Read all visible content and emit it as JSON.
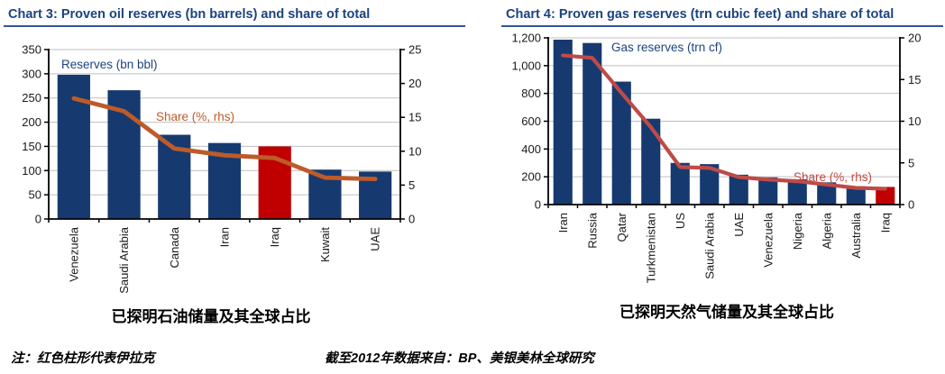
{
  "page": {
    "background": "#FFFFFF"
  },
  "footer": {
    "note": "注：红色柱形代表伊拉克",
    "source": "截至2012年数据来自：BP、美银美林全球研究"
  },
  "chart_data": [
    {
      "type": "bar",
      "title": "Chart 3: Proven oil reserves (bn barrels) and share of total",
      "caption": "已探明石油储量及其全球占比",
      "categories": [
        "Venezuela",
        "Saudi Arabia",
        "Canada",
        "Iran",
        "Iraq",
        "Kuwait",
        "UAE"
      ],
      "series": [
        {
          "name": "Reserves (bn bbl)",
          "type": "bar",
          "axis": "left",
          "values": [
            298,
            266,
            174,
            157,
            150,
            102,
            98
          ]
        },
        {
          "name": "Share (%, rhs)",
          "type": "line",
          "axis": "right",
          "values": [
            17.8,
            15.9,
            10.4,
            9.4,
            9.0,
            6.1,
            5.9
          ]
        }
      ],
      "highlight_category": "Iraq",
      "left_axis": {
        "min": 0,
        "max": 350,
        "tick_step": 50,
        "tick_labels": [
          "0",
          "50",
          "100",
          "150",
          "200",
          "250",
          "300",
          "350"
        ]
      },
      "right_axis": {
        "min": 0,
        "max": 25,
        "tick_step": 5,
        "tick_labels": [
          "0",
          "5",
          "10",
          "15",
          "20",
          "25"
        ]
      },
      "grid": "horizontal",
      "legend_position": "inside-plot",
      "colors": {
        "bar": "#163A70",
        "highlight_bar": "#C00000",
        "line": "#BE5B28",
        "title": "#1B4380",
        "series_label": "#1B4380",
        "grid": "#BFBFBF",
        "axis": "#000000",
        "tick_text": "#1A1A1A"
      }
    },
    {
      "type": "bar",
      "title": "Chart 4: Proven gas reserves (trn cubic feet) and share of total",
      "caption": "已探明天然气储量及其全球占比",
      "categories": [
        "Iran",
        "Russia",
        "Qatar",
        "Turkmenistan",
        "US",
        "Saudi Arabia",
        "UAE",
        "Venezuela",
        "Nigeria",
        "Algeria",
        "Australia",
        "Iraq"
      ],
      "series": [
        {
          "name": "Gas reserves (trn cf)",
          "type": "bar",
          "axis": "left",
          "values": [
            1187,
            1163,
            885,
            618,
            300,
            291,
            215,
            196,
            182,
            160,
            132,
            127
          ]
        },
        {
          "name": "Share (%, rhs)",
          "type": "line",
          "axis": "right",
          "values": [
            17.9,
            17.6,
            13.4,
            9.3,
            4.5,
            4.4,
            3.3,
            3.0,
            2.8,
            2.4,
            2.0,
            1.9
          ]
        }
      ],
      "highlight_category": "Iraq",
      "left_axis": {
        "min": 0,
        "max": 1200,
        "tick_step": 200,
        "tick_labels": [
          "0",
          "200",
          "400",
          "600",
          "800",
          "1,000",
          "1,200"
        ]
      },
      "right_axis": {
        "min": 0,
        "max": 20,
        "tick_step": 5,
        "tick_labels": [
          "0",
          "5",
          "10",
          "15",
          "20"
        ]
      },
      "grid": "horizontal",
      "legend_position": "inside-plot",
      "colors": {
        "bar": "#163A70",
        "highlight_bar": "#C00000",
        "line": "#BE4B48",
        "title": "#1B4380",
        "series_label": "#1B4380",
        "grid": "#BFBFBF",
        "axis": "#000000",
        "tick_text": "#1A1A1A"
      }
    }
  ]
}
